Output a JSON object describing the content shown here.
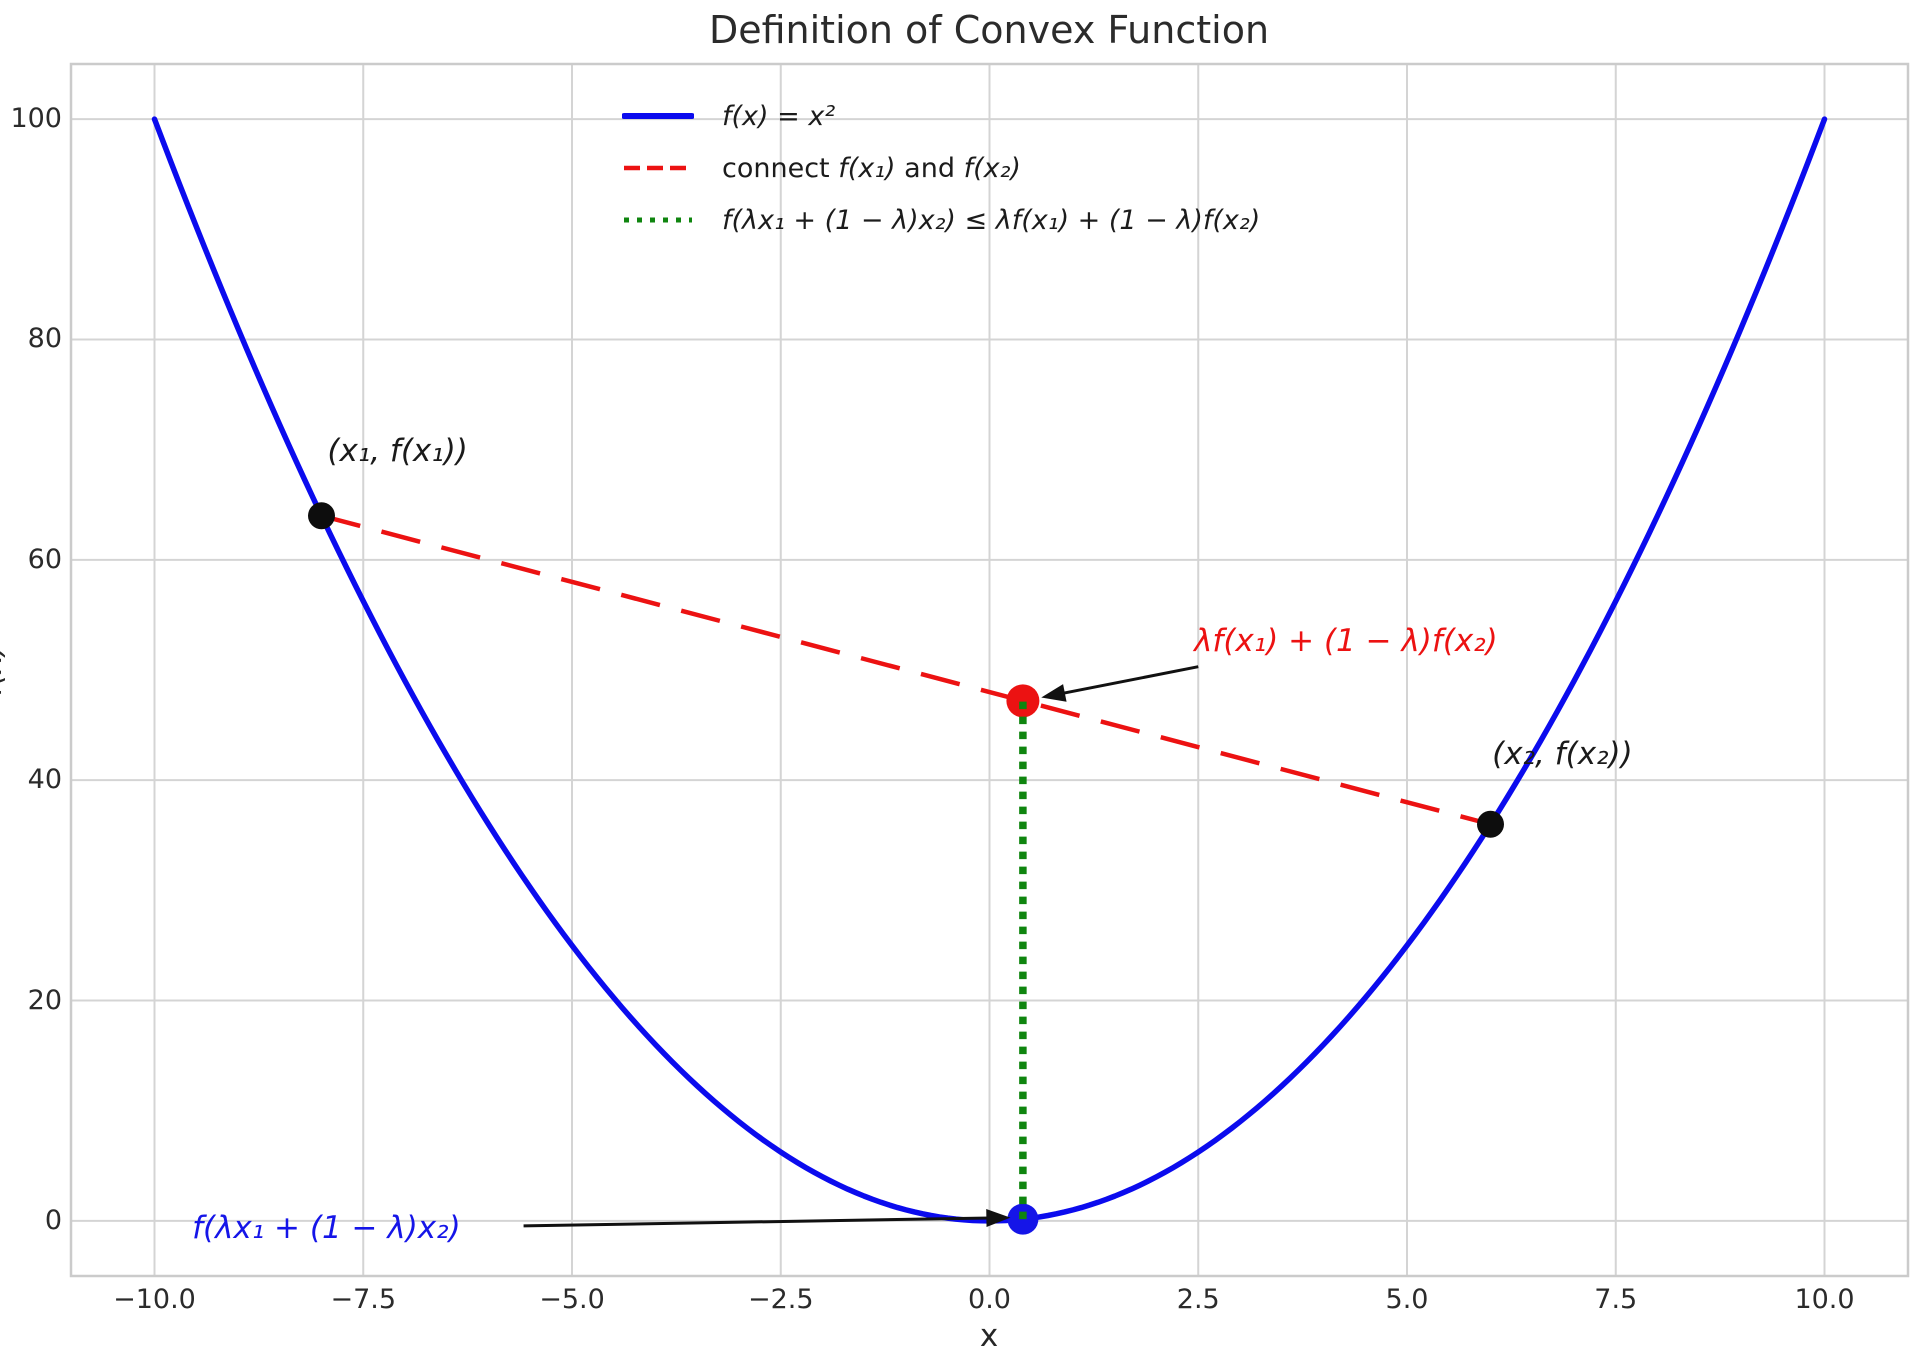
{
  "title": "Definition of Convex Function",
  "colors": {
    "curve_blue": "#0b0bee",
    "chord_red": "#ec1212",
    "segment_green": "#0f850f",
    "point_black": "#0d0d0d",
    "arrow_black": "#111111",
    "grid": "#d4d4d4",
    "spine": "#cbcbcb",
    "text_dark": "#262626"
  },
  "chart_data": {
    "type": "line",
    "title": "Definition of Convex Function",
    "xlabel": "x",
    "ylabel": "f(x)",
    "xlim": [
      -11,
      11
    ],
    "ylim": [
      -5,
      105
    ],
    "grid": true,
    "x_ticks": {
      "values": [
        -10,
        -7.5,
        -5,
        -2.5,
        0,
        2.5,
        5,
        7.5,
        10
      ],
      "labels": [
        "-10.0",
        "-7.5",
        "-5.0",
        "-2.5",
        "0.0",
        "2.5",
        "5.0",
        "7.5",
        "10.0"
      ]
    },
    "y_ticks": {
      "values": [
        0,
        20,
        40,
        60,
        80,
        100
      ],
      "labels": [
        "0",
        "20",
        "40",
        "60",
        "80",
        "100"
      ]
    },
    "curve": {
      "name": "f(x) = x²",
      "expr": "x^2",
      "x_min": -10,
      "x_max": 10,
      "color": "#0b0bee",
      "width": 5.5
    },
    "chord": {
      "name": "connect f(x₁) and f(x₂)",
      "x1": -8,
      "y1": 64,
      "x2": 6,
      "y2": 36,
      "color": "#ec1212",
      "width": 4.5,
      "dash": [
        40,
        22
      ]
    },
    "vertical_segment": {
      "name": "f(λx₁ + (1 − λ)x₂) ≤ λf(x₁) + (1 − λ)f(x₂)",
      "x": 0.4,
      "y1": 0.16,
      "y2": 47.2,
      "color": "#0f850f",
      "width": 7.5,
      "dash": [
        7.5,
        7.5
      ]
    },
    "points": [
      {
        "label": "(x₁, f(x₁))",
        "x": -8,
        "y": 64,
        "color": "#0d0d0d",
        "r": 13.5
      },
      {
        "label": "(x₂, f(x₂))",
        "x": 6,
        "y": 36,
        "color": "#0d0d0d",
        "r": 13.5
      },
      {
        "label": "λf(x₁) + (1 − λ)f(x₂)",
        "x": 0.4,
        "y": 47.2,
        "color": "#ec1212",
        "r": 16.5
      },
      {
        "label": "f(λx₁ + (1 − λ)x₂)",
        "x": 0.4,
        "y": 0.16,
        "color": "#1515e8",
        "r": 15.5
      }
    ],
    "annotations": [
      {
        "id": "point1-label",
        "text": "(x₁, f(x₁))",
        "x": -7.93,
        "y": 68.6,
        "color": "#1a1a1a"
      },
      {
        "id": "point2-label",
        "text": "(x₂, f(x₂))",
        "x": 6.02,
        "y": 41.1,
        "color": "#1a1a1a"
      },
      {
        "id": "upper-bound-label",
        "text": "λf(x₁) + (1 − λ)f(x₂)",
        "x": 2.45,
        "y": 51.4,
        "color": "#ec1212",
        "arrow": {
          "from": [
            2.5,
            50.3
          ],
          "to": [
            0.62,
            47.5
          ]
        }
      },
      {
        "id": "lower-bound-label",
        "text": "f(λx₁ + (1 − λ)x₂)",
        "x": -9.55,
        "y": -1.9,
        "color": "#1515e8",
        "arrow": {
          "from": [
            -5.58,
            -0.45
          ],
          "to": [
            0.25,
            0.3
          ]
        }
      }
    ],
    "legend_position": "upper center-left",
    "legend_frame": false
  },
  "legend": {
    "items": [
      {
        "style": "solid",
        "color": "#0b0bee",
        "width": 6,
        "segments": [
          {
            "text": "f(x) = x²",
            "italic": true
          }
        ]
      },
      {
        "style": "dashed",
        "color": "#ec1212",
        "width": 4.5,
        "segments": [
          {
            "text": "connect ",
            "italic": false
          },
          {
            "text": "f(x₁)",
            "italic": true
          },
          {
            "text": " and ",
            "italic": false
          },
          {
            "text": "f(x₂)",
            "italic": true
          }
        ]
      },
      {
        "style": "dotted",
        "color": "#0f850f",
        "width": 5,
        "segments": [
          {
            "text": "f(λx₁ + (1 − λ)x₂) ≤ λf(x₁) + (1 − λ)f(x₂)",
            "italic": true
          }
        ]
      }
    ]
  },
  "axis_text": {
    "x_label": "x",
    "y_label": "f(x)"
  }
}
